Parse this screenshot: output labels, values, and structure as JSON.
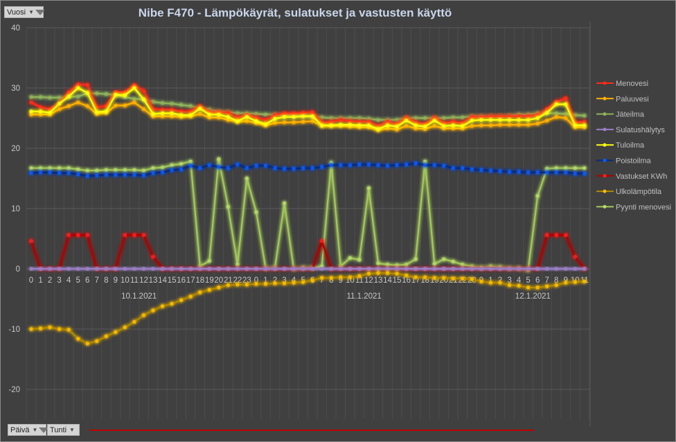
{
  "controls": {
    "year_filter": "Vuosi",
    "day_filter": "Päivä",
    "hour_filter": "Tunti"
  },
  "chart_data": {
    "type": "line",
    "title": "Nibe F470 - Lämpökäyrät, sulatukset ja vastusten käyttö",
    "xlabel": "",
    "ylabel": "",
    "ylim": [
      -30,
      40
    ],
    "yticks": [
      40,
      30,
      20,
      10,
      0,
      -10,
      -20
    ],
    "grid": true,
    "legend": "right",
    "days": [
      {
        "label": "10.1.2021",
        "hours": [
          "0",
          "1",
          "2",
          "3",
          "4",
          "5",
          "6",
          "7",
          "8",
          "9",
          "10",
          "11",
          "12",
          "13",
          "14",
          "15",
          "16",
          "17",
          "18",
          "19",
          "20",
          "21",
          "22",
          "23"
        ]
      },
      {
        "label": "11.1.2021",
        "hours": [
          "0",
          "1",
          "2",
          "3",
          "4",
          "5",
          "6",
          "7",
          "8",
          "9",
          "10",
          "11",
          "12",
          "13",
          "14",
          "15",
          "16",
          "17",
          "18",
          "19",
          "20",
          "21",
          "22",
          "23"
        ]
      },
      {
        "label": "12.1.2021",
        "hours": [
          "0",
          "1",
          "2",
          "3",
          "4",
          "5",
          "6",
          "7",
          "8",
          "9",
          "10",
          "11"
        ]
      }
    ],
    "series": [
      {
        "name": "Menovesi",
        "color": "#ff2a1a",
        "values": [
          27.6,
          26.8,
          26.5,
          27.4,
          29.3,
          30.6,
          30.5,
          26.8,
          27.0,
          29.3,
          29.3,
          30.5,
          29.5,
          26.5,
          26.4,
          26.4,
          26.1,
          26.1,
          27.0,
          26.0,
          26.0,
          25.9,
          25.1,
          25.5,
          25.1,
          24.7,
          25.5,
          25.8,
          25.8,
          25.9,
          26.0,
          24.3,
          24.4,
          24.7,
          24.5,
          24.4,
          24.4,
          23.7,
          24.4,
          24.0,
          25.1,
          24.3,
          24.0,
          25.1,
          24.2,
          24.4,
          24.2,
          25.2,
          25.2,
          25.3,
          25.3,
          25.3,
          25.3,
          25.3,
          25.5,
          26.5,
          27.7,
          28.3,
          24.3,
          24.4
        ]
      },
      {
        "name": "Paluuvesi",
        "color": "#ffb000",
        "values": [
          25.6,
          25.6,
          25.6,
          26.5,
          27.0,
          27.6,
          27.0,
          25.7,
          25.9,
          27.1,
          27.1,
          27.6,
          26.5,
          25.3,
          25.3,
          25.3,
          25.2,
          25.3,
          25.7,
          25.1,
          25.1,
          24.7,
          24.4,
          24.5,
          24.2,
          23.8,
          24.2,
          24.3,
          24.3,
          24.4,
          24.5,
          23.7,
          23.7,
          23.7,
          23.6,
          23.5,
          23.5,
          23.0,
          23.3,
          23.1,
          23.7,
          23.3,
          23.2,
          23.7,
          23.3,
          23.3,
          23.3,
          23.7,
          23.8,
          23.8,
          23.9,
          23.9,
          23.9,
          23.9,
          24.1,
          24.6,
          25.2,
          25.0,
          23.5,
          23.5
        ]
      },
      {
        "name": "Jäteilma",
        "color": "#8fb35a",
        "values": [
          28.5,
          28.5,
          28.4,
          28.4,
          28.5,
          28.6,
          29.1,
          29.1,
          29.0,
          28.8,
          28.5,
          28.2,
          28.1,
          27.7,
          27.5,
          27.4,
          27.2,
          27.0,
          26.6,
          26.4,
          26.1,
          26.0,
          25.8,
          25.8,
          25.7,
          25.6,
          25.6,
          25.5,
          25.5,
          25.5,
          25.3,
          25.1,
          25.0,
          25.0,
          25.0,
          25.0,
          24.9,
          24.7,
          24.7,
          24.7,
          25.0,
          25.0,
          25.0,
          25.0,
          25.0,
          25.1,
          25.1,
          25.3,
          25.3,
          25.3,
          25.3,
          25.4,
          25.6,
          25.6,
          25.8,
          25.8,
          25.8,
          25.7,
          25.5,
          25.4
        ]
      },
      {
        "name": "Sulatushälytys",
        "color": "#9b7fc4",
        "values": [
          0,
          0,
          0,
          0,
          0,
          0,
          0,
          0,
          0,
          0,
          0,
          0,
          0,
          0,
          0,
          0,
          0,
          0,
          0,
          0,
          0,
          0,
          0,
          0,
          0,
          0,
          0,
          0,
          0,
          0,
          0,
          0,
          0,
          0,
          0,
          0,
          0,
          0,
          0,
          0,
          0,
          0,
          0,
          0,
          0,
          0,
          0,
          0,
          0,
          0,
          0,
          0,
          0,
          0,
          0,
          0,
          0,
          0,
          0,
          0
        ]
      },
      {
        "name": "Tuloilma",
        "color": "#ffff10",
        "values": [
          26.1,
          26.1,
          25.9,
          27.4,
          28.6,
          30.0,
          29.2,
          26.0,
          26.1,
          28.9,
          28.8,
          30.0,
          28.1,
          25.7,
          25.8,
          25.8,
          25.5,
          25.5,
          26.6,
          25.6,
          25.6,
          25.2,
          24.5,
          25.2,
          24.5,
          24.0,
          24.9,
          25.2,
          25.2,
          25.3,
          25.3,
          23.8,
          23.8,
          23.9,
          23.9,
          23.8,
          23.8,
          23.2,
          23.8,
          23.6,
          24.6,
          23.8,
          23.6,
          24.6,
          23.7,
          23.8,
          23.7,
          24.6,
          24.7,
          24.7,
          24.7,
          24.7,
          24.7,
          24.7,
          25.0,
          25.9,
          27.3,
          27.3,
          23.8,
          23.8
        ]
      },
      {
        "name": "Poistoilma",
        "color": "#0a5cff",
        "line": "#0a2a7a",
        "values": [
          15.9,
          16.0,
          16.0,
          15.9,
          15.9,
          15.7,
          15.4,
          15.5,
          15.6,
          15.6,
          15.6,
          15.6,
          15.5,
          15.9,
          16.0,
          16.4,
          16.5,
          17.1,
          16.7,
          17.2,
          16.9,
          16.7,
          17.3,
          16.7,
          17.1,
          17.1,
          16.7,
          16.6,
          16.6,
          16.7,
          16.7,
          16.9,
          17.2,
          17.2,
          17.2,
          17.3,
          17.3,
          17.2,
          17.1,
          17.2,
          17.3,
          17.5,
          17.2,
          17.2,
          17.1,
          16.7,
          16.7,
          16.5,
          16.4,
          16.3,
          16.2,
          16.1,
          16.1,
          16.0,
          16.0,
          16.0,
          16.0,
          16.0,
          15.8,
          15.8
        ]
      },
      {
        "name": "Vastukset KWh",
        "color": "#ff2020",
        "line": "#b00000",
        "values": [
          4.6,
          0,
          0,
          0,
          5.6,
          5.6,
          5.6,
          0,
          0,
          0,
          5.6,
          5.6,
          5.6,
          2.0,
          0,
          0,
          0,
          0,
          0,
          0,
          0,
          0,
          0,
          0,
          0,
          0,
          0,
          0,
          0,
          0,
          0,
          4.6,
          0,
          0,
          0,
          0,
          0,
          0,
          0,
          0,
          0,
          0,
          0,
          0,
          0,
          0,
          0,
          0,
          0,
          0,
          0,
          0,
          0,
          0,
          0,
          5.6,
          5.6,
          5.6,
          2.0,
          0
        ]
      },
      {
        "name": "Ulkolämpötila",
        "color": "#ffc000",
        "line": "#b08a00",
        "values": [
          -10.0,
          -9.9,
          -9.7,
          -10.0,
          -10.1,
          -11.6,
          -12.4,
          -12.0,
          -11.2,
          -10.5,
          -9.7,
          -8.8,
          -7.7,
          -6.9,
          -6.2,
          -5.8,
          -5.2,
          -4.6,
          -3.9,
          -3.5,
          -3.1,
          -2.7,
          -2.6,
          -2.6,
          -2.5,
          -2.5,
          -2.4,
          -2.4,
          -2.3,
          -2.2,
          -1.9,
          -1.5,
          -1.5,
          -1.4,
          -1.4,
          -1.2,
          -0.8,
          -0.7,
          -0.7,
          -0.8,
          -1.1,
          -1.4,
          -1.4,
          -1.5,
          -1.5,
          -1.6,
          -1.6,
          -1.7,
          -2.1,
          -2.3,
          -2.3,
          -2.7,
          -2.8,
          -3.1,
          -3.1,
          -2.9,
          -2.7,
          -2.3,
          -2.2,
          -2.1
        ]
      },
      {
        "name": "Pyynti menovesi",
        "color": "#b5dc6a",
        "line": "#a3c85a",
        "values": [
          16.7,
          16.7,
          16.7,
          16.7,
          16.7,
          16.5,
          16.3,
          16.3,
          16.4,
          16.4,
          16.4,
          16.4,
          16.3,
          16.7,
          16.8,
          17.2,
          17.4,
          17.8,
          0.4,
          1.3,
          18.2,
          10.3,
          0.7,
          15.0,
          9.4,
          0.1,
          0.2,
          10.9,
          0,
          0.2,
          0.2,
          0.4,
          17.6,
          0.4,
          1.8,
          1.5,
          13.4,
          0.9,
          0.7,
          0.6,
          0.7,
          1.6,
          17.8,
          0.8,
          1.6,
          1.2,
          0.7,
          0.4,
          0.2,
          0.4,
          0.3,
          0.1,
          0.1,
          -0.2,
          12.1,
          16.6,
          16.7,
          16.7,
          16.7,
          16.7
        ]
      }
    ]
  }
}
